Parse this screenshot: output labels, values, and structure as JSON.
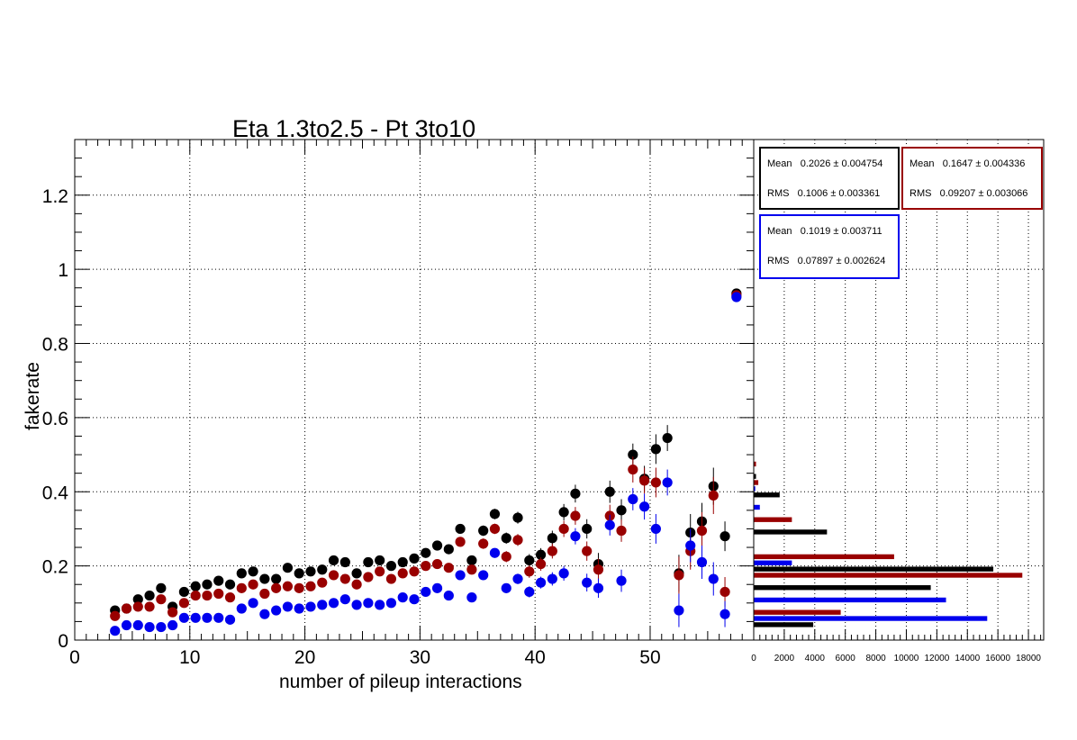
{
  "chart_data": [
    {
      "type": "scatter",
      "title": "Eta 1.3to2.5 - Pt 3to10",
      "xlabel": "number of pileup interactions",
      "ylabel": "fakerate",
      "xlim": [
        0,
        59
      ],
      "ylim": [
        0,
        1.35
      ],
      "x_ticks": [
        0,
        10,
        20,
        30,
        40,
        50
      ],
      "y_ticks": [
        0,
        0.2,
        0.4,
        0.6,
        0.8,
        1,
        1.2
      ],
      "y_tick_labels": [
        "0",
        "0.2",
        "0.4",
        "0.6",
        "0.8",
        "1",
        "1.2"
      ],
      "grid": true,
      "series": [
        {
          "color": "#000000",
          "points": [
            [
              3.5,
              0.08
            ],
            [
              4.5,
              0.085
            ],
            [
              5.5,
              0.11
            ],
            [
              6.5,
              0.12
            ],
            [
              7.5,
              0.14
            ],
            [
              8.5,
              0.09
            ],
            [
              9.5,
              0.13
            ],
            [
              10.5,
              0.145
            ],
            [
              11.5,
              0.15
            ],
            [
              12.5,
              0.16
            ],
            [
              13.5,
              0.15
            ],
            [
              14.5,
              0.18
            ],
            [
              15.5,
              0.185
            ],
            [
              16.5,
              0.165
            ],
            [
              17.5,
              0.165
            ],
            [
              18.5,
              0.195
            ],
            [
              19.5,
              0.18
            ],
            [
              20.5,
              0.185
            ],
            [
              21.5,
              0.19
            ],
            [
              22.5,
              0.215
            ],
            [
              23.5,
              0.21
            ],
            [
              24.5,
              0.18
            ],
            [
              25.5,
              0.21
            ],
            [
              26.5,
              0.215
            ],
            [
              27.5,
              0.2
            ],
            [
              28.5,
              0.21
            ],
            [
              29.5,
              0.22
            ],
            [
              30.5,
              0.235
            ],
            [
              31.5,
              0.255
            ],
            [
              32.5,
              0.245
            ],
            [
              33.5,
              0.3
            ],
            [
              34.5,
              0.215
            ],
            [
              35.5,
              0.295
            ],
            [
              36.5,
              0.34
            ],
            [
              37.5,
              0.275
            ],
            [
              38.5,
              0.33
            ],
            [
              39.5,
              0.215
            ],
            [
              40.5,
              0.23
            ],
            [
              41.5,
              0.275
            ],
            [
              42.5,
              0.345
            ],
            [
              43.5,
              0.395
            ],
            [
              44.5,
              0.3
            ],
            [
              45.5,
              0.205
            ],
            [
              46.5,
              0.4
            ],
            [
              47.5,
              0.35
            ],
            [
              48.5,
              0.5
            ],
            [
              49.5,
              0.435
            ],
            [
              50.5,
              0.515
            ],
            [
              51.5,
              0.545
            ],
            [
              52.5,
              0.18
            ],
            [
              53.5,
              0.29
            ],
            [
              54.5,
              0.32
            ],
            [
              55.5,
              0.415
            ],
            [
              56.5,
              0.28
            ],
            [
              57.5,
              0.935
            ]
          ],
          "errors": [
            0.012,
            0.012,
            0.01,
            0.01,
            0.01,
            0.01,
            0.009,
            0.009,
            0.009,
            0.009,
            0.009,
            0.009,
            0.009,
            0.009,
            0.009,
            0.009,
            0.009,
            0.009,
            0.009,
            0.009,
            0.009,
            0.009,
            0.009,
            0.01,
            0.01,
            0.01,
            0.01,
            0.01,
            0.012,
            0.012,
            0.012,
            0.012,
            0.014,
            0.014,
            0.015,
            0.016,
            0.017,
            0.018,
            0.02,
            0.022,
            0.024,
            0.026,
            0.03,
            0.03,
            0.03,
            0.03,
            0.035,
            0.04,
            0.035,
            0.05,
            0.05,
            0.05,
            0.05,
            0.04,
            0.01
          ]
        },
        {
          "color": "#990000",
          "points": [
            [
              3.5,
              0.065
            ],
            [
              4.5,
              0.085
            ],
            [
              5.5,
              0.09
            ],
            [
              6.5,
              0.09
            ],
            [
              7.5,
              0.11
            ],
            [
              8.5,
              0.075
            ],
            [
              9.5,
              0.1
            ],
            [
              10.5,
              0.12
            ],
            [
              11.5,
              0.12
            ],
            [
              12.5,
              0.125
            ],
            [
              13.5,
              0.115
            ],
            [
              14.5,
              0.14
            ],
            [
              15.5,
              0.15
            ],
            [
              16.5,
              0.125
            ],
            [
              17.5,
              0.14
            ],
            [
              18.5,
              0.145
            ],
            [
              19.5,
              0.14
            ],
            [
              20.5,
              0.145
            ],
            [
              21.5,
              0.155
            ],
            [
              22.5,
              0.175
            ],
            [
              23.5,
              0.165
            ],
            [
              24.5,
              0.15
            ],
            [
              25.5,
              0.17
            ],
            [
              26.5,
              0.185
            ],
            [
              27.5,
              0.165
            ],
            [
              28.5,
              0.18
            ],
            [
              29.5,
              0.185
            ],
            [
              30.5,
              0.2
            ],
            [
              31.5,
              0.205
            ],
            [
              32.5,
              0.195
            ],
            [
              33.5,
              0.265
            ],
            [
              34.5,
              0.19
            ],
            [
              35.5,
              0.26
            ],
            [
              36.5,
              0.3
            ],
            [
              37.5,
              0.225
            ],
            [
              38.5,
              0.27
            ],
            [
              39.5,
              0.185
            ],
            [
              40.5,
              0.205
            ],
            [
              41.5,
              0.24
            ],
            [
              42.5,
              0.3
            ],
            [
              43.5,
              0.335
            ],
            [
              44.5,
              0.24
            ],
            [
              45.5,
              0.19
            ],
            [
              46.5,
              0.335
            ],
            [
              47.5,
              0.295
            ],
            [
              48.5,
              0.46
            ],
            [
              49.5,
              0.43
            ],
            [
              50.5,
              0.425
            ],
            [
              52.5,
              0.175
            ],
            [
              53.5,
              0.24
            ],
            [
              54.5,
              0.295
            ],
            [
              55.5,
              0.39
            ],
            [
              56.5,
              0.13
            ],
            [
              57.5,
              0.93
            ]
          ],
          "errors": [
            0.011,
            0.011,
            0.01,
            0.01,
            0.01,
            0.01,
            0.009,
            0.009,
            0.009,
            0.009,
            0.009,
            0.009,
            0.009,
            0.009,
            0.009,
            0.009,
            0.009,
            0.009,
            0.009,
            0.009,
            0.009,
            0.009,
            0.009,
            0.01,
            0.01,
            0.01,
            0.01,
            0.01,
            0.012,
            0.012,
            0.012,
            0.012,
            0.014,
            0.014,
            0.015,
            0.016,
            0.017,
            0.018,
            0.02,
            0.022,
            0.024,
            0.026,
            0.03,
            0.03,
            0.03,
            0.035,
            0.035,
            0.04,
            0.05,
            0.05,
            0.05,
            0.05,
            0.04,
            0.01
          ]
        },
        {
          "color": "#0000ee",
          "points": [
            [
              3.5,
              0.025
            ],
            [
              4.5,
              0.04
            ],
            [
              5.5,
              0.04
            ],
            [
              6.5,
              0.035
            ],
            [
              7.5,
              0.035
            ],
            [
              8.5,
              0.04
            ],
            [
              9.5,
              0.06
            ],
            [
              10.5,
              0.06
            ],
            [
              11.5,
              0.06
            ],
            [
              12.5,
              0.06
            ],
            [
              13.5,
              0.055
            ],
            [
              14.5,
              0.085
            ],
            [
              15.5,
              0.1
            ],
            [
              16.5,
              0.07
            ],
            [
              17.5,
              0.08
            ],
            [
              18.5,
              0.09
            ],
            [
              19.5,
              0.085
            ],
            [
              20.5,
              0.09
            ],
            [
              21.5,
              0.095
            ],
            [
              22.5,
              0.1
            ],
            [
              23.5,
              0.11
            ],
            [
              24.5,
              0.095
            ],
            [
              25.5,
              0.1
            ],
            [
              26.5,
              0.095
            ],
            [
              27.5,
              0.1
            ],
            [
              28.5,
              0.115
            ],
            [
              29.5,
              0.11
            ],
            [
              30.5,
              0.13
            ],
            [
              31.5,
              0.14
            ],
            [
              32.5,
              0.12
            ],
            [
              33.5,
              0.175
            ],
            [
              34.5,
              0.115
            ],
            [
              35.5,
              0.175
            ],
            [
              36.5,
              0.235
            ],
            [
              37.5,
              0.14
            ],
            [
              38.5,
              0.165
            ],
            [
              39.5,
              0.13
            ],
            [
              40.5,
              0.155
            ],
            [
              41.5,
              0.165
            ],
            [
              42.5,
              0.18
            ],
            [
              43.5,
              0.28
            ],
            [
              44.5,
              0.155
            ],
            [
              45.5,
              0.14
            ],
            [
              46.5,
              0.31
            ],
            [
              47.5,
              0.16
            ],
            [
              48.5,
              0.38
            ],
            [
              49.5,
              0.36
            ],
            [
              50.5,
              0.3
            ],
            [
              51.5,
              0.425
            ],
            [
              52.5,
              0.08
            ],
            [
              53.5,
              0.255
            ],
            [
              54.5,
              0.21
            ],
            [
              55.5,
              0.165
            ],
            [
              56.5,
              0.07
            ],
            [
              57.5,
              0.925
            ]
          ],
          "errors": [
            0.008,
            0.008,
            0.008,
            0.007,
            0.007,
            0.007,
            0.007,
            0.007,
            0.007,
            0.007,
            0.007,
            0.007,
            0.007,
            0.007,
            0.007,
            0.007,
            0.007,
            0.007,
            0.007,
            0.007,
            0.007,
            0.007,
            0.007,
            0.008,
            0.008,
            0.008,
            0.008,
            0.008,
            0.009,
            0.01,
            0.01,
            0.01,
            0.012,
            0.012,
            0.013,
            0.014,
            0.015,
            0.016,
            0.018,
            0.02,
            0.022,
            0.024,
            0.026,
            0.028,
            0.03,
            0.03,
            0.035,
            0.04,
            0.035,
            0.045,
            0.045,
            0.045,
            0.045,
            0.035,
            0.01
          ]
        }
      ]
    },
    {
      "type": "bar",
      "orientation": "horizontal",
      "xlim": [
        0,
        19000
      ],
      "x_ticks": [
        0,
        2000,
        4000,
        6000,
        8000,
        10000,
        12000,
        14000,
        16000,
        18000
      ],
      "x_tick_labels": [
        "0",
        "2000",
        "4000",
        "6000",
        "8000",
        "10000",
        "12000",
        "14000",
        "16000",
        "18000"
      ],
      "bin_width": 0.05,
      "series": [
        {
          "color": "#000000",
          "bins": [
            [
              0.0,
              3900
            ],
            [
              0.1,
              11600
            ],
            [
              0.15,
              15700
            ],
            [
              0.25,
              4800
            ],
            [
              0.35,
              1700
            ],
            [
              0.4,
              150
            ]
          ]
        },
        {
          "color": "#990000",
          "bins": [
            [
              0.05,
              5700
            ],
            [
              0.15,
              17600
            ],
            [
              0.2,
              9200
            ],
            [
              0.3,
              2500
            ],
            [
              0.4,
              300
            ],
            [
              0.45,
              150
            ]
          ]
        },
        {
          "color": "#0000ee",
          "bins": [
            [
              0.05,
              15300
            ],
            [
              0.1,
              12600
            ],
            [
              0.2,
              2500
            ],
            [
              0.35,
              400
            ],
            [
              0.4,
              100
            ]
          ]
        }
      ]
    }
  ],
  "stats": [
    {
      "color": "#000000",
      "mean_label": "Mean",
      "mean_value": "0.2026 ± 0.004754",
      "rms_label": "RMS",
      "rms_value": "0.1006 ± 0.003361"
    },
    {
      "color": "#990000",
      "mean_label": "Mean",
      "mean_value": "0.1647 ± 0.004336",
      "rms_label": "RMS",
      "rms_value": "0.09207 ± 0.003066"
    },
    {
      "color": "#0000ee",
      "mean_label": "Mean",
      "mean_value": "0.1019 ± 0.003711",
      "rms_label": "RMS",
      "rms_value": "0.07897 ± 0.002624"
    }
  ]
}
